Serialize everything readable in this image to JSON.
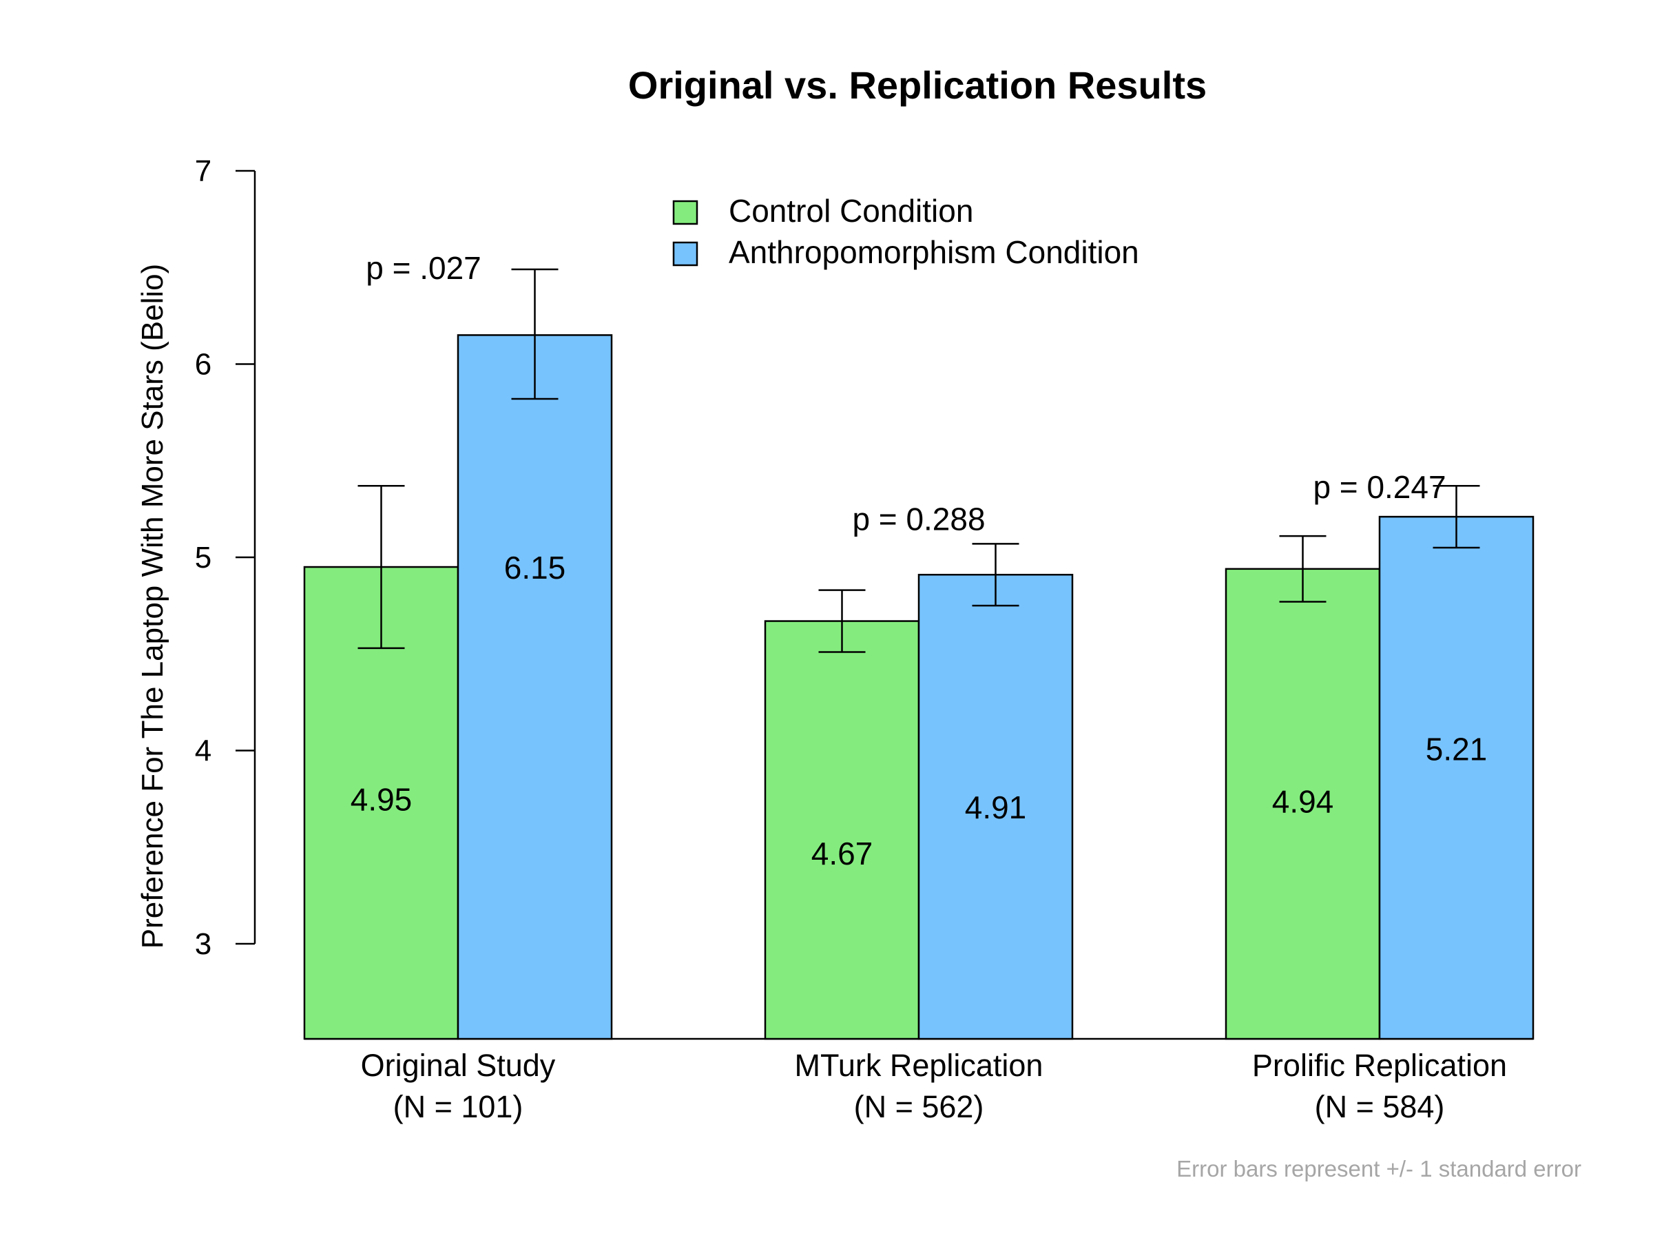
{
  "chart_data": {
    "type": "bar",
    "title": "Original vs. Replication Results",
    "ylabel": "Preference For The Laptop With More Stars (Belio)",
    "xlabel": "",
    "ylim": [
      2.5,
      7
    ],
    "yticks": [
      3,
      4,
      5,
      6,
      7
    ],
    "grid": false,
    "legend_position": "top-center",
    "categories": [
      {
        "line1": "Original Study",
        "line2": "(N = 101)"
      },
      {
        "line1": "MTurk Replication",
        "line2": "(N = 562)"
      },
      {
        "line1": "Prolific Replication",
        "line2": "(N = 584)"
      }
    ],
    "series": [
      {
        "name": "Control Condition",
        "color": "#84ec7e",
        "values": [
          4.95,
          4.67,
          4.94
        ],
        "value_labels": [
          "4.95",
          "4.67",
          "4.94"
        ],
        "error_low": [
          4.53,
          4.51,
          4.77
        ],
        "error_high": [
          5.37,
          4.83,
          5.11
        ]
      },
      {
        "name": "Anthropomorphism Condition",
        "color": "#77c3fd",
        "values": [
          6.15,
          4.91,
          5.21
        ],
        "value_labels": [
          "6.15",
          "4.91",
          "5.21"
        ],
        "error_low": [
          5.82,
          4.75,
          5.05
        ],
        "error_high": [
          6.49,
          5.07,
          5.37
        ]
      }
    ],
    "p_values": [
      "p = .027",
      "p = 0.288",
      "p = 0.247"
    ],
    "footnote": "Error bars represent +/- 1 standard error"
  }
}
